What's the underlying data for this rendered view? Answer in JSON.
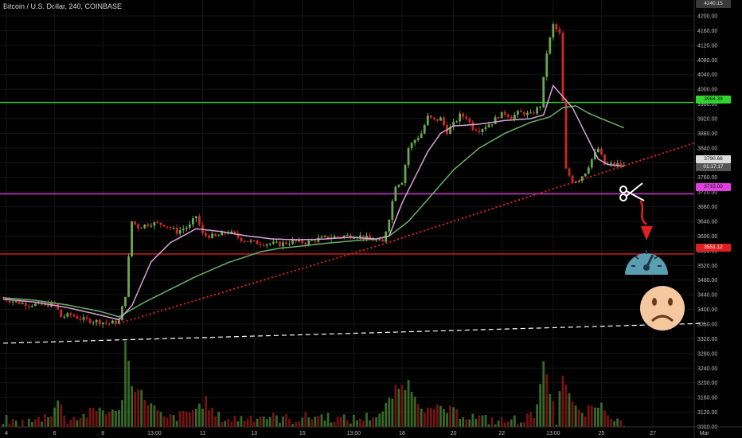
{
  "header": {
    "title": "Bitcoin / U.S. Dollar, 240, COINBASE"
  },
  "price_tags": {
    "top_level": "4240.15",
    "green_line": "3964.39",
    "last_price": "3790.66",
    "countdown": "01:17:17",
    "magenta_line": "3715.00",
    "red_line": "3551.12"
  },
  "colors": {
    "background": "#000000",
    "bull": "#6aa84f",
    "bear": "#cc2a2a",
    "ma_fast": "#d7a3d8",
    "ma_slow": "#6ab06a",
    "green_line": "#2fd42f",
    "magenta_line": "#e23fe2",
    "red_line": "#e02020",
    "trendline": "#e02020",
    "dashed_line": "#ffffff",
    "gauge": "#5b9db2",
    "sad_face": "#f5c8a0"
  },
  "icons": [
    "scissors-icon",
    "down-arrow-icon",
    "speedometer-icon",
    "sad-face-icon"
  ],
  "chart_data": {
    "type": "candlestick",
    "title": "Bitcoin / U.S. Dollar, 240, COINBASE",
    "y_ticks": [
      3080,
      3120,
      3160,
      3200,
      3240,
      3280,
      3320,
      3360,
      3400,
      3440,
      3480,
      3520,
      3560,
      3600,
      3640,
      3680,
      3720,
      3760,
      3800,
      3840,
      3880,
      3920,
      3960,
      4000,
      4040,
      4080,
      4120,
      4160,
      4200
    ],
    "y_tick_labels": [
      "3080.00",
      "3120.00",
      "3160.00",
      "3200.00",
      "3240.00",
      "3280.00",
      "3320.00",
      "3360.00",
      "3400.00",
      "3440.00",
      "3480.00",
      "3520.00",
      "3560.00",
      "3600.00",
      "3640.00",
      "3680.00",
      "3720.00",
      "3760.00",
      "3800.00",
      "3840.00",
      "3880.00",
      "3920.00",
      "3960.00",
      "4000.00",
      "4040.00",
      "4080.00",
      "4120.00",
      "4160.00",
      "4200.00"
    ],
    "ylim": [
      3062,
      4242
    ],
    "x_ticks": [
      "4",
      "6",
      "8",
      "13:00",
      "11",
      "13",
      "15",
      "13:00",
      "18",
      "20",
      "22",
      "13:00",
      "25",
      "27",
      "Mar"
    ],
    "x_tick_index": [
      1,
      16,
      31,
      47,
      62,
      78,
      93,
      109,
      124,
      140,
      155,
      171,
      186,
      202,
      218
    ],
    "n_bars": 198,
    "horizontal_levels": [
      {
        "name": "green",
        "value": 3964.39
      },
      {
        "name": "magenta",
        "value": 3715.0
      },
      {
        "name": "red",
        "value": 3551.12
      }
    ],
    "last_price": 3790.66,
    "trendline": [
      {
        "i": 36,
        "v": 3362
      },
      {
        "i": 117,
        "v": 3575
      },
      {
        "i": 215,
        "v": 3854
      }
    ],
    "dashed_line": [
      {
        "i": 0,
        "v": 3308
      },
      {
        "i": 218,
        "v": 3362
      }
    ],
    "price_anchors": [
      [
        0,
        3430
      ],
      [
        4,
        3420
      ],
      [
        8,
        3415
      ],
      [
        12,
        3412
      ],
      [
        16,
        3415
      ],
      [
        18,
        3380
      ],
      [
        21,
        3385
      ],
      [
        25,
        3372
      ],
      [
        29,
        3368
      ],
      [
        33,
        3362
      ],
      [
        36,
        3368
      ],
      [
        38,
        3440
      ],
      [
        40,
        3640
      ],
      [
        42,
        3625
      ],
      [
        46,
        3635
      ],
      [
        50,
        3632
      ],
      [
        54,
        3612
      ],
      [
        58,
        3628
      ],
      [
        60,
        3655
      ],
      [
        62,
        3604
      ],
      [
        66,
        3598
      ],
      [
        70,
        3612
      ],
      [
        74,
        3592
      ],
      [
        78,
        3582
      ],
      [
        82,
        3580
      ],
      [
        86,
        3578
      ],
      [
        90,
        3585
      ],
      [
        94,
        3582
      ],
      [
        98,
        3592
      ],
      [
        102,
        3597
      ],
      [
        106,
        3600
      ],
      [
        110,
        3602
      ],
      [
        114,
        3592
      ],
      [
        118,
        3582
      ],
      [
        120,
        3650
      ],
      [
        122,
        3740
      ],
      [
        124,
        3750
      ],
      [
        126,
        3840
      ],
      [
        128,
        3862
      ],
      [
        130,
        3880
      ],
      [
        132,
        3925
      ],
      [
        134,
        3915
      ],
      [
        136,
        3920
      ],
      [
        138,
        3885
      ],
      [
        140,
        3905
      ],
      [
        142,
        3928
      ],
      [
        144,
        3925
      ],
      [
        146,
        3895
      ],
      [
        148,
        3890
      ],
      [
        150,
        3900
      ],
      [
        152,
        3910
      ],
      [
        154,
        3928
      ],
      [
        156,
        3935
      ],
      [
        158,
        3925
      ],
      [
        160,
        3935
      ],
      [
        162,
        3935
      ],
      [
        164,
        3930
      ],
      [
        167,
        3955
      ],
      [
        169,
        4100
      ],
      [
        171,
        4175
      ],
      [
        173,
        4150
      ],
      [
        175,
        3780
      ],
      [
        177,
        3750
      ],
      [
        179,
        3755
      ],
      [
        181,
        3775
      ],
      [
        183,
        3810
      ],
      [
        185,
        3838
      ],
      [
        187,
        3795
      ],
      [
        189,
        3795
      ],
      [
        191,
        3795
      ],
      [
        193,
        3790
      ]
    ],
    "volume_anchors": [
      [
        0,
        3100
      ],
      [
        5,
        3090
      ],
      [
        10,
        3095
      ],
      [
        15,
        3120
      ],
      [
        17,
        3150
      ],
      [
        20,
        3100
      ],
      [
        25,
        3110
      ],
      [
        30,
        3130
      ],
      [
        35,
        3115
      ],
      [
        37,
        3160
      ],
      [
        38,
        3310
      ],
      [
        40,
        3200
      ],
      [
        45,
        3150
      ],
      [
        50,
        3100
      ],
      [
        55,
        3110
      ],
      [
        60,
        3130
      ],
      [
        63,
        3150
      ],
      [
        66,
        3110
      ],
      [
        70,
        3100
      ],
      [
        75,
        3105
      ],
      [
        80,
        3110
      ],
      [
        85,
        3105
      ],
      [
        90,
        3100
      ],
      [
        95,
        3108
      ],
      [
        100,
        3110
      ],
      [
        105,
        3100
      ],
      [
        110,
        3102
      ],
      [
        115,
        3110
      ],
      [
        118,
        3120
      ],
      [
        122,
        3180
      ],
      [
        126,
        3200
      ],
      [
        128,
        3170
      ],
      [
        130,
        3140
      ],
      [
        133,
        3120
      ],
      [
        136,
        3130
      ],
      [
        140,
        3120
      ],
      [
        145,
        3110
      ],
      [
        150,
        3100
      ],
      [
        155,
        3095
      ],
      [
        160,
        3100
      ],
      [
        165,
        3110
      ],
      [
        168,
        3250
      ],
      [
        170,
        3170
      ],
      [
        172,
        3100
      ],
      [
        174,
        3230
      ],
      [
        176,
        3160
      ],
      [
        178,
        3130
      ],
      [
        180,
        3110
      ],
      [
        182,
        3130
      ],
      [
        184,
        3120
      ],
      [
        186,
        3150
      ],
      [
        188,
        3100
      ],
      [
        190,
        3105
      ],
      [
        193,
        3090
      ]
    ],
    "ma_fast_anchors": [
      [
        0,
        3428
      ],
      [
        10,
        3420
      ],
      [
        20,
        3405
      ],
      [
        30,
        3385
      ],
      [
        36,
        3372
      ],
      [
        40,
        3410
      ],
      [
        46,
        3530
      ],
      [
        52,
        3582
      ],
      [
        60,
        3620
      ],
      [
        68,
        3612
      ],
      [
        76,
        3600
      ],
      [
        84,
        3592
      ],
      [
        92,
        3590
      ],
      [
        100,
        3592
      ],
      [
        108,
        3597
      ],
      [
        116,
        3592
      ],
      [
        120,
        3600
      ],
      [
        124,
        3690
      ],
      [
        128,
        3760
      ],
      [
        132,
        3830
      ],
      [
        136,
        3880
      ],
      [
        140,
        3900
      ],
      [
        148,
        3905
      ],
      [
        156,
        3915
      ],
      [
        164,
        3920
      ],
      [
        168,
        3930
      ],
      [
        171,
        4010
      ],
      [
        173,
        3990
      ],
      [
        177,
        3950
      ],
      [
        181,
        3880
      ],
      [
        185,
        3810
      ],
      [
        188,
        3795
      ],
      [
        193,
        3790
      ]
    ],
    "ma_slow_anchors": [
      [
        0,
        3432
      ],
      [
        10,
        3425
      ],
      [
        20,
        3412
      ],
      [
        30,
        3395
      ],
      [
        36,
        3380
      ],
      [
        44,
        3420
      ],
      [
        52,
        3455
      ],
      [
        60,
        3490
      ],
      [
        70,
        3528
      ],
      [
        80,
        3557
      ],
      [
        86,
        3567
      ],
      [
        92,
        3572
      ],
      [
        100,
        3580
      ],
      [
        110,
        3588
      ],
      [
        116,
        3592
      ],
      [
        120,
        3600
      ],
      [
        126,
        3640
      ],
      [
        132,
        3700
      ],
      [
        140,
        3780
      ],
      [
        148,
        3840
      ],
      [
        156,
        3880
      ],
      [
        164,
        3910
      ],
      [
        170,
        3925
      ],
      [
        174,
        3950
      ],
      [
        178,
        3955
      ],
      [
        182,
        3935
      ],
      [
        186,
        3920
      ],
      [
        193,
        3895
      ]
    ],
    "grid": true,
    "legend": "none"
  }
}
